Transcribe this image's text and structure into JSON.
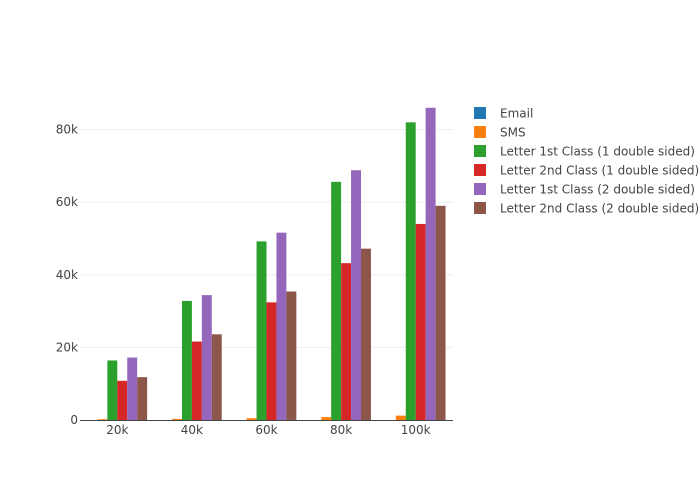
{
  "chart_data": {
    "type": "bar",
    "title": "",
    "xlabel": "",
    "ylabel": "",
    "categories": [
      "20k",
      "40k",
      "60k",
      "80k",
      "100k"
    ],
    "ylim": [
      0,
      92000
    ],
    "y_ticks": [
      0,
      20000,
      40000,
      60000,
      80000
    ],
    "y_tick_labels": [
      "0",
      "20k",
      "40k",
      "60k",
      "80k"
    ],
    "grid": true,
    "legend_position": "right",
    "series": [
      {
        "name": "Email",
        "color": "#1f77b4",
        "values": [
          0,
          0,
          0,
          0,
          0
        ]
      },
      {
        "name": "SMS",
        "color": "#ff7f0e",
        "values": [
          200,
          300,
          500,
          800,
          1200
        ]
      },
      {
        "name": "Letter 1st Class (1 double sided)",
        "color": "#2ca02c",
        "values": [
          16400,
          32800,
          49200,
          65600,
          82000
        ]
      },
      {
        "name": "Letter 2nd Class (1 double sided)",
        "color": "#d62728",
        "values": [
          10800,
          21600,
          32400,
          43200,
          54000
        ]
      },
      {
        "name": "Letter 1st Class (2 double sided)",
        "color": "#9467bd",
        "values": [
          17200,
          34400,
          51600,
          68800,
          86000
        ]
      },
      {
        "name": "Letter 2nd Class (2 double sided)",
        "color": "#8c564b",
        "values": [
          11800,
          23600,
          35400,
          47200,
          59000
        ]
      }
    ]
  }
}
